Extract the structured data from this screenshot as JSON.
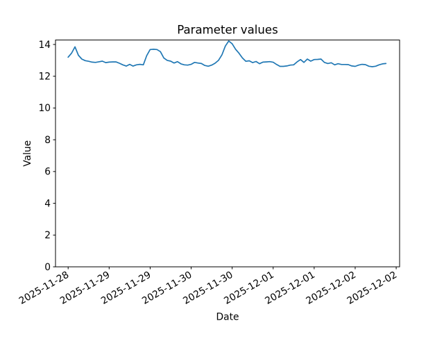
{
  "figure": {
    "background": "#ffffff"
  },
  "chart_data": {
    "type": "line",
    "title": "Parameter values",
    "xlabel": "Date",
    "ylabel": "Value",
    "legend": "none",
    "grid": "off",
    "line_color": "#1f77b4",
    "axis_color": "#000000",
    "ylim": [
      0,
      14.28
    ],
    "yticks": [
      0,
      2,
      4,
      6,
      8,
      10,
      12,
      14
    ],
    "x_start": "2025-11-28 12:00",
    "x_interval_hours": 1,
    "xlim_hours": [
      -3.7,
      97
    ],
    "xticks": [
      {
        "hour": 0,
        "label": "2025-11-28"
      },
      {
        "hour": 12,
        "label": "2025-11-29"
      },
      {
        "hour": 24,
        "label": "2025-11-29"
      },
      {
        "hour": 36,
        "label": "2025-11-30"
      },
      {
        "hour": 48,
        "label": "2025-11-30"
      },
      {
        "hour": 60,
        "label": "2025-12-01"
      },
      {
        "hour": 72,
        "label": "2025-12-01"
      },
      {
        "hour": 84,
        "label": "2025-12-02"
      },
      {
        "hour": 96,
        "label": "2025-12-02"
      }
    ],
    "values": [
      13.2,
      13.45,
      13.85,
      13.32,
      13.08,
      12.98,
      12.94,
      12.89,
      12.87,
      12.91,
      12.95,
      12.86,
      12.89,
      12.9,
      12.9,
      12.82,
      12.72,
      12.64,
      12.75,
      12.64,
      12.72,
      12.75,
      12.72,
      13.3,
      13.68,
      13.7,
      13.68,
      13.55,
      13.15,
      13.0,
      12.95,
      12.83,
      12.92,
      12.78,
      12.72,
      12.7,
      12.75,
      12.87,
      12.83,
      12.8,
      12.68,
      12.63,
      12.7,
      12.82,
      13.0,
      13.35,
      13.9,
      14.22,
      14.05,
      13.7,
      13.45,
      13.15,
      12.94,
      12.97,
      12.86,
      12.93,
      12.79,
      12.89,
      12.9,
      12.92,
      12.88,
      12.74,
      12.62,
      12.62,
      12.65,
      12.7,
      12.72,
      12.9,
      13.05,
      12.87,
      13.08,
      12.95,
      13.05,
      13.06,
      13.08,
      12.87,
      12.8,
      12.85,
      12.72,
      12.79,
      12.74,
      12.74,
      12.73,
      12.65,
      12.62,
      12.7,
      12.75,
      12.73,
      12.63,
      12.6,
      12.63,
      12.72,
      12.78,
      12.8
    ]
  }
}
